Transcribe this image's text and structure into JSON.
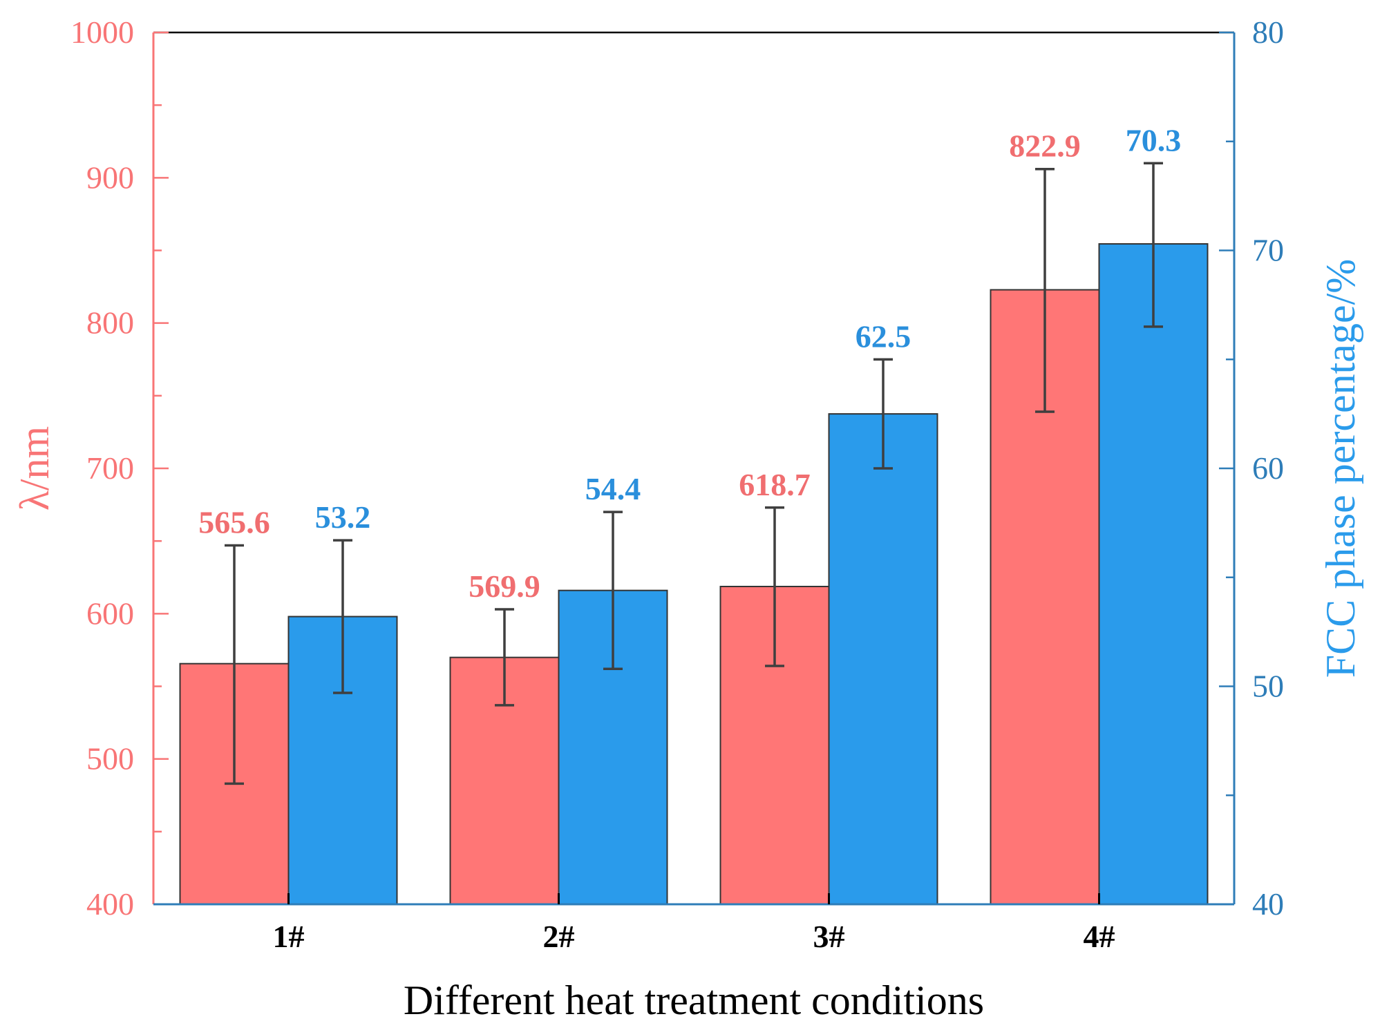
{
  "chart_data": {
    "type": "bar",
    "title": "",
    "xlabel": "Different heat treatment conditions",
    "categories": [
      "1#",
      "2#",
      "3#",
      "4#"
    ],
    "y_left": {
      "label": "λ/nm",
      "lim": [
        400,
        1000
      ],
      "ticks": [
        "400",
        "500",
        "600",
        "700",
        "800",
        "900",
        "1000"
      ],
      "color": "#F87576"
    },
    "y_right": {
      "label": "FCC phase percentage/%",
      "lim": [
        40,
        80
      ],
      "ticks": [
        "40",
        "50",
        "60",
        "70",
        "80"
      ],
      "color": "#2E7DB8"
    },
    "series": [
      {
        "name": "λ",
        "axis": "left",
        "color": "#FF7676",
        "label_color": "#F06E70",
        "values": [
          565.6,
          569.9,
          618.7,
          822.9
        ],
        "labels": [
          "565.6",
          "569.9",
          "618.7",
          "822.9"
        ],
        "err_low": [
          483,
          537,
          564,
          739
        ],
        "err_high": [
          647,
          603,
          673,
          906
        ]
      },
      {
        "name": "FCC phase percentage",
        "axis": "right",
        "color": "#2A9BEB",
        "label_color": "#2A8FDC",
        "values": [
          53.2,
          54.4,
          62.5,
          70.3
        ],
        "labels": [
          "53.2",
          "54.4",
          "62.5",
          "70.3"
        ],
        "err_low": [
          49.7,
          50.8,
          60.0,
          66.5
        ],
        "err_high": [
          56.7,
          58.0,
          65.0,
          74.0
        ]
      }
    ],
    "error_bar_color": "#3f3f3f",
    "legend": "none",
    "grid": false
  }
}
